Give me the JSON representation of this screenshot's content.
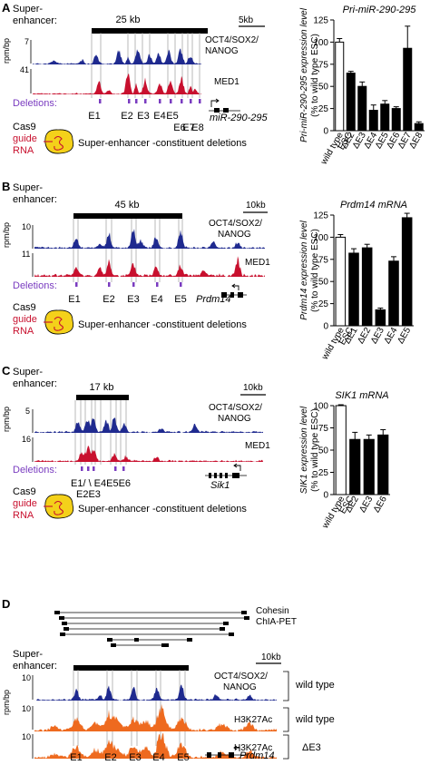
{
  "colors": {
    "blue": "#1f2a8f",
    "red": "#c8102e",
    "orange": "#ee6a1f",
    "purple": "#7a3cc0",
    "yellow": "#f4d11a"
  },
  "panelA": {
    "letter": "A",
    "se_label": "Super-\nenhancer:",
    "span": "25 kb",
    "scale": "5kb",
    "ylabel": "rpm/bp",
    "track1_max": "7",
    "track2_max": "41",
    "track1_name": "OCT4/SOX2/\nNANOG",
    "track2_name": "MED1",
    "deletions": "Deletions:",
    "gene": "miR-290-295",
    "elements": [
      "E1",
      "E2",
      "E3",
      "E4",
      "E5",
      "E6",
      "E7",
      "E8"
    ],
    "cas9": "Cas9",
    "guide": "guide",
    "rna": "RNA",
    "caption": "Super-enhancer -constituent deletions"
  },
  "panelB": {
    "letter": "B",
    "se_label": "Super-\nenhancer:",
    "span": "45 kb",
    "scale": "10kb",
    "ylabel": "rpm/bp",
    "track1_max": "10",
    "track2_max": "11",
    "track1_name": "OCT4/SOX2/\nNANOG",
    "track2_name": "MED1",
    "deletions": "Deletions:",
    "gene": "Prdm14",
    "elements": [
      "E1",
      "E2",
      "E3",
      "E4",
      "E5"
    ],
    "cas9": "Cas9",
    "guide": "guide",
    "rna": "RNA",
    "caption": "Super-enhancer -constituent deletions"
  },
  "panelC": {
    "letter": "C",
    "se_label": "Super-\nenhancer:",
    "span": "17 kb",
    "scale": "10kb",
    "ylabel": "rpm/bp",
    "track1_max": "5",
    "track2_max": "16",
    "track1_name": "OCT4/SOX2/\nNANOG",
    "track2_name": "MED1",
    "deletions": "Deletions:",
    "gene": "Sik1",
    "elements_row1": "E1/ \\ E4E5E6",
    "elements_row2": "E2E3",
    "cas9": "Cas9",
    "guide": "guide",
    "rna": "RNA",
    "caption": "Super-enhancer -constituent deletions"
  },
  "panelD": {
    "letter": "D",
    "chia_label": "Cohesin\nChIA-PET",
    "se_label": "Super-\nenhancer:",
    "scale": "10kb",
    "ylabel": "rpm/bp",
    "track1_max": "10",
    "track2_max": "10",
    "track3_max": "10",
    "track1_name": "OCT4/SOX2/\nNANOG",
    "track2_name": "H3K27Ac",
    "track3_name": "H3K27Ac",
    "cond1": "wild type",
    "cond2": "wild type",
    "cond3": "ΔE3",
    "gene": "Prdm14",
    "elements": [
      "E1",
      "E2",
      "E3",
      "E4",
      "E5"
    ]
  },
  "chart_data": [
    {
      "type": "bar",
      "title": "Pri-miR-290-295",
      "ylabel": "Pri-miR-290-295 expression level (% to wild type ESC)",
      "ylim": [
        0,
        125
      ],
      "yticks": [
        0,
        25,
        50,
        75,
        100,
        125
      ],
      "categories": [
        "wild type ESC",
        "ΔE2",
        "ΔE3",
        "ΔE4",
        "ΔE5",
        "ΔE6",
        "ΔE7",
        "ΔE8"
      ],
      "values": [
        100,
        65,
        50,
        23,
        30,
        25,
        93,
        8
      ],
      "errors": [
        4,
        2,
        5,
        6,
        4,
        2,
        25,
        2
      ]
    },
    {
      "type": "bar",
      "title": "Prdm14 mRNA",
      "ylabel": "Prdm14 expression level (% to wild type ESC)",
      "ylim": [
        0,
        125
      ],
      "yticks": [
        0,
        25,
        50,
        75,
        100,
        125
      ],
      "categories": [
        "wild type ESC",
        "ΔE1",
        "ΔE2",
        "ΔE3",
        "ΔE4",
        "ΔE5"
      ],
      "values": [
        100,
        82,
        88,
        18,
        73,
        122
      ],
      "errors": [
        3,
        5,
        4,
        2,
        5,
        5
      ]
    },
    {
      "type": "bar",
      "title": "SIK1 mRNA",
      "ylabel": "SIK1 expression level (% to wild type ESC)",
      "ylim": [
        0,
        100
      ],
      "yticks": [
        0,
        25,
        50,
        75,
        100
      ],
      "categories": [
        "wild type ESC",
        "ΔE2",
        "ΔE3",
        "ΔE6"
      ],
      "values": [
        100,
        62,
        62,
        67
      ],
      "errors": [
        1,
        8,
        5,
        6
      ]
    }
  ]
}
